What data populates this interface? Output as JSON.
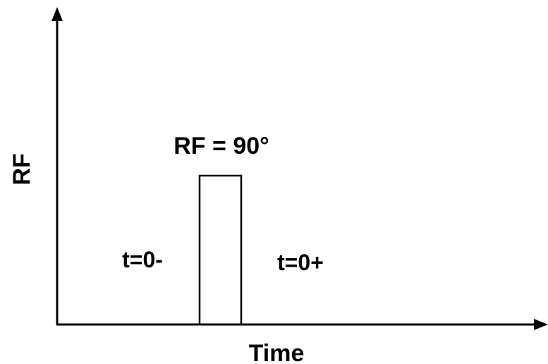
{
  "diagram": {
    "y_axis_label": "RF",
    "x_axis_label": "Time",
    "pulse_label": "RF = 90°",
    "before_label": "t=0-",
    "after_label": "t=0+"
  }
}
